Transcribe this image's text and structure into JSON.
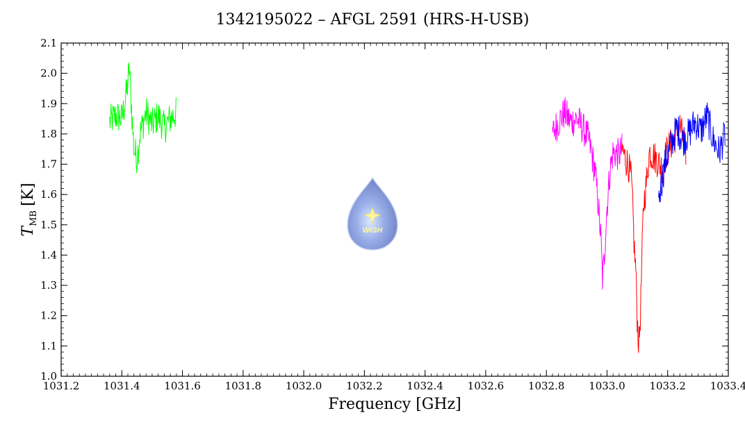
{
  "chart_data": {
    "type": "line",
    "title": "1342195022 – AFGL 2591 (HRS-H-USB)",
    "xlabel": "Frequency [GHz]",
    "ylabel_main": "T",
    "ylabel_sub": "MB",
    "ylabel_unit": "[K]",
    "xlim": [
      1031.2,
      1033.4
    ],
    "ylim": [
      1.0,
      2.1
    ],
    "x_ticks": [
      "1031.2",
      "1031.4",
      "1031.6",
      "1031.8",
      "1032.0",
      "1032.2",
      "1032.4",
      "1032.6",
      "1032.8",
      "1033.0",
      "1033.2",
      "1033.4"
    ],
    "y_ticks": [
      "1.0",
      "1.1",
      "1.2",
      "1.3",
      "1.4",
      "1.5",
      "1.6",
      "1.7",
      "1.8",
      "1.9",
      "2.0",
      "2.1"
    ],
    "grid": false,
    "logo_text": "WISH",
    "series": [
      {
        "color": "#00ff00",
        "points": [
          [
            1031.36,
            1.84
          ],
          [
            1031.38,
            1.86
          ],
          [
            1031.4,
            1.85
          ],
          [
            1031.41,
            1.9
          ],
          [
            1031.42,
            1.97
          ],
          [
            1031.425,
            2.02
          ],
          [
            1031.43,
            1.92
          ],
          [
            1031.44,
            1.75
          ],
          [
            1031.45,
            1.72
          ],
          [
            1031.46,
            1.8
          ],
          [
            1031.48,
            1.87
          ],
          [
            1031.5,
            1.83
          ],
          [
            1031.52,
            1.86
          ],
          [
            1031.54,
            1.82
          ],
          [
            1031.56,
            1.85
          ],
          [
            1031.58,
            1.87
          ]
        ]
      },
      {
        "color": "#ff00ff",
        "points": [
          [
            1032.82,
            1.8
          ],
          [
            1032.84,
            1.84
          ],
          [
            1032.86,
            1.87
          ],
          [
            1032.88,
            1.84
          ],
          [
            1032.9,
            1.85
          ],
          [
            1032.92,
            1.82
          ],
          [
            1032.94,
            1.78
          ],
          [
            1032.96,
            1.68
          ],
          [
            1032.97,
            1.58
          ],
          [
            1032.98,
            1.45
          ],
          [
            1032.985,
            1.32
          ],
          [
            1032.99,
            1.38
          ],
          [
            1033.0,
            1.56
          ],
          [
            1033.01,
            1.68
          ],
          [
            1033.02,
            1.74
          ],
          [
            1033.04,
            1.73
          ],
          [
            1033.05,
            1.75
          ]
        ]
      },
      {
        "color": "#ff0000",
        "points": [
          [
            1033.05,
            1.75
          ],
          [
            1033.06,
            1.72
          ],
          [
            1033.07,
            1.7
          ],
          [
            1033.08,
            1.65
          ],
          [
            1033.085,
            1.55
          ],
          [
            1033.09,
            1.42
          ],
          [
            1033.095,
            1.35
          ],
          [
            1033.1,
            1.18
          ],
          [
            1033.105,
            1.1
          ],
          [
            1033.11,
            1.2
          ],
          [
            1033.115,
            1.38
          ],
          [
            1033.12,
            1.56
          ],
          [
            1033.13,
            1.64
          ],
          [
            1033.14,
            1.74
          ],
          [
            1033.16,
            1.72
          ],
          [
            1033.18,
            1.69
          ],
          [
            1033.2,
            1.75
          ],
          [
            1033.22,
            1.78
          ],
          [
            1033.24,
            1.83
          ],
          [
            1033.26,
            1.74
          ]
        ]
      },
      {
        "color": "#0000ff",
        "points": [
          [
            1033.17,
            1.58
          ],
          [
            1033.19,
            1.7
          ],
          [
            1033.21,
            1.76
          ],
          [
            1033.23,
            1.82
          ],
          [
            1033.25,
            1.78
          ],
          [
            1033.27,
            1.8
          ],
          [
            1033.29,
            1.84
          ],
          [
            1033.31,
            1.81
          ],
          [
            1033.33,
            1.86
          ],
          [
            1033.35,
            1.78
          ],
          [
            1033.37,
            1.74
          ],
          [
            1033.39,
            1.8
          ]
        ]
      }
    ]
  }
}
